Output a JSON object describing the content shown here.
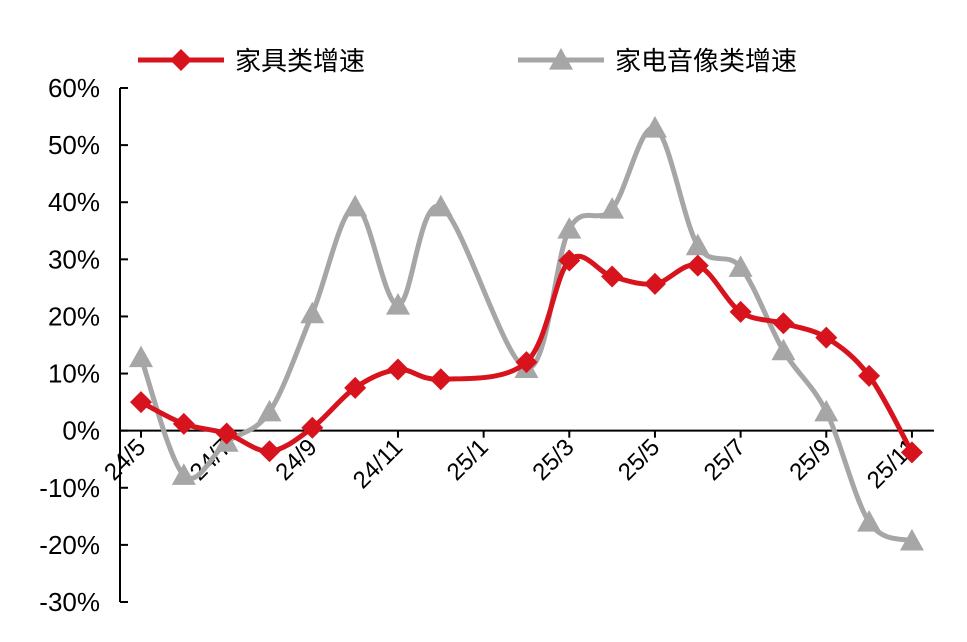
{
  "chart_data": {
    "type": "line",
    "title": "",
    "xlabel": "",
    "ylabel": "",
    "ylim": [
      -30,
      60
    ],
    "yticks": [
      -30,
      -20,
      -10,
      0,
      10,
      20,
      30,
      40,
      50,
      60
    ],
    "ytick_labels": [
      "-30%",
      "-20%",
      "-10%",
      "0%",
      "10%",
      "20%",
      "30%",
      "40%",
      "50%",
      "60%"
    ],
    "x": [
      "24/5",
      "24/6",
      "24/7",
      "24/8",
      "24/9",
      "24/10",
      "24/11",
      "24/12",
      "25/1",
      "25/2",
      "25/3",
      "25/4",
      "25/5",
      "25/6",
      "25/7",
      "25/8",
      "25/9",
      "25/10",
      "25/11"
    ],
    "xtick_labels": [
      "24/5",
      "24/7",
      "24/9",
      "24/11",
      "25/1",
      "25/3",
      "25/5",
      "25/7",
      "25/9",
      "25/11"
    ],
    "legend_position": "top",
    "grid": false,
    "series": [
      {
        "name": "家具类增速",
        "color": "#d7141e",
        "marker": "diamond",
        "values": [
          5.0,
          1.2,
          -0.5,
          -3.6,
          0.5,
          7.5,
          10.7,
          9.0,
          null,
          12.0,
          29.8,
          27.0,
          25.7,
          28.9,
          20.8,
          18.8,
          16.3,
          9.6,
          -3.8
        ]
      },
      {
        "name": "家电音像类增速",
        "color": "#a6a6a6",
        "marker": "triangle",
        "values": [
          12.8,
          -7.8,
          -2.0,
          3.3,
          20.5,
          39.2,
          22.0,
          39.2,
          null,
          10.9,
          35.3,
          38.8,
          53.0,
          32.4,
          28.6,
          14.0,
          3.3,
          -16.0,
          -19.3
        ]
      }
    ]
  }
}
